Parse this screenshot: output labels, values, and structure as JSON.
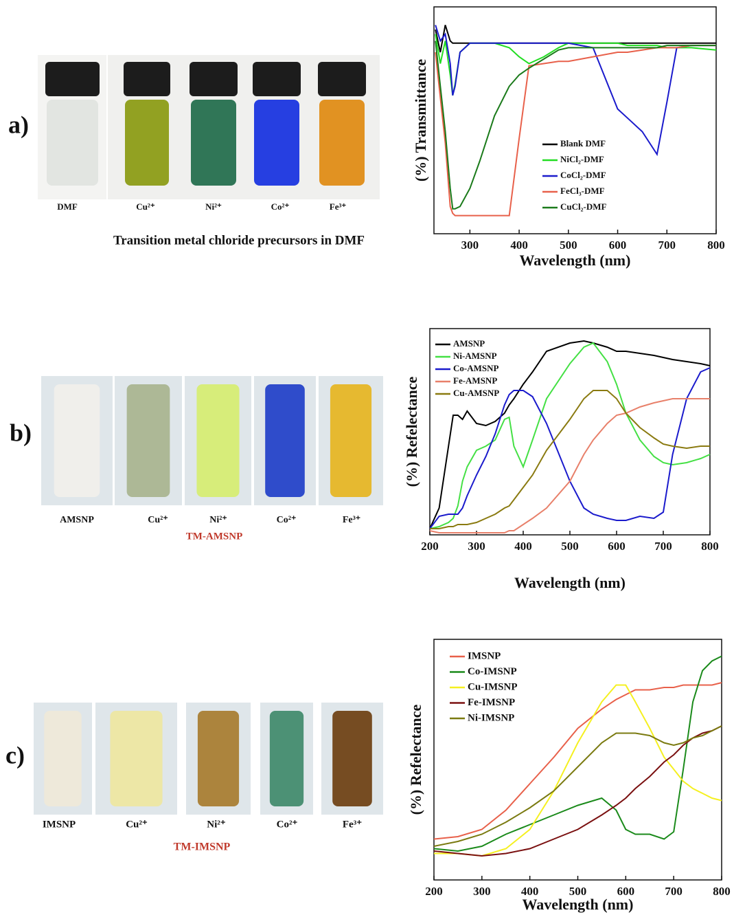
{
  "panels": [
    {
      "label": "a)",
      "samples": [
        "DMF",
        "Cu²⁺",
        "Ni²⁺",
        "Co²⁺",
        "Fe³⁺"
      ],
      "caption": "Transition metal chloride precursors in DMF"
    },
    {
      "label": "b)",
      "samples": [
        "AMSNP",
        "Cu²⁺",
        "Ni²⁺",
        "Co²⁺",
        "Fe³⁺"
      ],
      "caption": "TM-AMSNP"
    },
    {
      "label": "c)",
      "samples": [
        "IMSNP",
        "Cu²⁺",
        "Ni²⁺",
        "Co²⁺",
        "Fe³⁺"
      ],
      "caption": "TM-IMSNP"
    }
  ],
  "chart_data": [
    {
      "type": "line",
      "x_label": "Wavelength (nm)",
      "y_label": "(%) Transmittance",
      "xlim": [
        227,
        800
      ],
      "xticks": [
        300,
        400,
        500,
        600,
        700,
        800
      ],
      "ylim": [
        0,
        100
      ],
      "x": [
        230,
        240,
        250,
        260,
        265,
        270,
        280,
        300,
        320,
        350,
        380,
        400,
        420,
        450,
        480,
        500,
        550,
        600,
        620,
        650,
        680,
        700,
        720,
        750,
        800
      ],
      "series": [
        {
          "name": "Blank DMF",
          "color": "#000000",
          "values": [
            90,
            80,
            92,
            85,
            84,
            84,
            84,
            84,
            84,
            84,
            84,
            84,
            84,
            84,
            84,
            84,
            84,
            84,
            84,
            84,
            84,
            84,
            84,
            84,
            84
          ]
        },
        {
          "name": "NiCl₂-DMF",
          "color": "#22dd22",
          "values": [
            88,
            75,
            85,
            70,
            61,
            66,
            80,
            84,
            84,
            84,
            82,
            78,
            75,
            78,
            82,
            84,
            84,
            84,
            83,
            83,
            83,
            82,
            82,
            82,
            81
          ]
        },
        {
          "name": "CoCl₂-DMF",
          "color": "#1a1acc",
          "values": [
            92,
            85,
            88,
            75,
            61,
            65,
            80,
            84,
            84,
            84,
            84,
            84,
            84,
            84,
            84,
            84,
            82,
            55,
            51,
            45,
            35,
            58,
            82,
            83,
            83
          ]
        },
        {
          "name": "FeCl₃-DMF",
          "color": "#e8604a",
          "values": [
            80,
            60,
            40,
            12,
            9,
            8,
            8,
            8,
            8,
            8,
            8,
            42,
            74,
            75,
            76,
            76,
            78,
            80,
            80,
            81,
            82,
            82,
            82,
            83,
            83
          ]
        },
        {
          "name": "CuCl₂-DMF",
          "color": "#1a7a1a",
          "values": [
            85,
            65,
            45,
            20,
            11,
            11,
            12,
            20,
            32,
            52,
            65,
            70,
            73,
            77,
            81,
            82,
            82,
            82,
            82,
            82,
            82,
            83,
            83,
            83,
            83
          ]
        }
      ]
    },
    {
      "type": "line",
      "x_label": "Wavelength (nm)",
      "y_label": "(%) Refelectance",
      "xlim": [
        200,
        800
      ],
      "xticks": [
        200,
        300,
        400,
        500,
        600,
        700,
        800
      ],
      "ylim": [
        0,
        100
      ],
      "x": [
        200,
        220,
        240,
        250,
        260,
        270,
        280,
        300,
        320,
        340,
        360,
        370,
        380,
        400,
        420,
        450,
        500,
        530,
        550,
        580,
        600,
        620,
        650,
        680,
        700,
        720,
        750,
        780,
        800
      ],
      "series": [
        {
          "name": "AMSNP",
          "color": "#000000",
          "values": [
            3,
            13,
            43,
            58,
            58,
            56,
            60,
            54,
            53,
            55,
            59,
            63,
            66,
            73,
            79,
            89,
            93,
            94,
            93,
            91,
            89,
            89,
            88,
            87,
            86,
            85,
            84,
            83,
            82
          ]
        },
        {
          "name": "Ni-AMSNP",
          "color": "#44e044",
          "values": [
            3,
            4,
            6,
            8,
            14,
            26,
            33,
            41,
            43,
            46,
            56,
            57,
            43,
            33,
            46,
            66,
            83,
            91,
            93,
            84,
            73,
            59,
            46,
            38,
            35,
            34,
            35,
            37,
            39
          ]
        },
        {
          "name": "Co-AMSNP",
          "color": "#1a1acc",
          "values": [
            3,
            9,
            10,
            10,
            10,
            13,
            19,
            29,
            38,
            49,
            63,
            68,
            70,
            70,
            67,
            54,
            26,
            13,
            10,
            8,
            7,
            7,
            9,
            8,
            11,
            39,
            66,
            79,
            81
          ]
        },
        {
          "name": "Fe-AMSNP",
          "color": "#e8806a",
          "values": [
            2,
            1,
            1,
            1,
            1,
            1,
            1,
            1,
            1,
            1,
            1,
            2,
            2,
            5,
            8,
            13,
            26,
            39,
            46,
            54,
            58,
            59,
            62,
            64,
            65,
            66,
            66,
            66,
            66
          ]
        },
        {
          "name": "Cu-AMSNP",
          "color": "#8a7a10",
          "values": [
            3,
            3,
            4,
            4,
            5,
            5,
            5,
            6,
            8,
            10,
            13,
            14,
            17,
            23,
            29,
            41,
            56,
            66,
            70,
            70,
            66,
            59,
            52,
            47,
            44,
            43,
            42,
            43,
            43
          ]
        }
      ]
    },
    {
      "type": "line",
      "x_label": "Wavelength (nm)",
      "y_label": "(%) Refelectance",
      "xlim": [
        200,
        800
      ],
      "xticks": [
        200,
        300,
        400,
        500,
        600,
        700,
        800
      ],
      "ylim": [
        0,
        100
      ],
      "x": [
        200,
        250,
        300,
        350,
        400,
        450,
        500,
        550,
        580,
        600,
        620,
        650,
        680,
        700,
        720,
        740,
        760,
        780,
        800
      ],
      "series": [
        {
          "name": "IMSNP",
          "color": "#e8604a",
          "values": [
            17,
            18,
            21,
            29,
            40,
            51,
            63,
            71,
            75,
            77,
            79,
            79,
            80,
            80,
            81,
            81,
            81,
            81,
            82
          ]
        },
        {
          "name": "Co-IMSNP",
          "color": "#1a8a1a",
          "values": [
            13,
            12,
            14,
            19,
            23,
            27,
            31,
            34,
            29,
            21,
            19,
            19,
            17,
            20,
            46,
            74,
            87,
            91,
            93
          ]
        },
        {
          "name": "Cu-IMSNP",
          "color": "#f5f020",
          "values": [
            11,
            11,
            10,
            13,
            21,
            37,
            57,
            74,
            81,
            81,
            74,
            63,
            51,
            46,
            41,
            38,
            36,
            34,
            33
          ]
        },
        {
          "name": "Fe-IMSNP",
          "color": "#7a1010",
          "values": [
            12,
            11,
            10,
            11,
            13,
            17,
            21,
            27,
            31,
            34,
            38,
            43,
            49,
            52,
            56,
            59,
            61,
            62,
            64
          ]
        },
        {
          "name": "Ni-IMSNP",
          "color": "#7a7a10",
          "values": [
            14,
            16,
            19,
            24,
            30,
            37,
            47,
            57,
            61,
            61,
            61,
            60,
            57,
            56,
            57,
            59,
            60,
            62,
            64
          ]
        }
      ]
    }
  ]
}
